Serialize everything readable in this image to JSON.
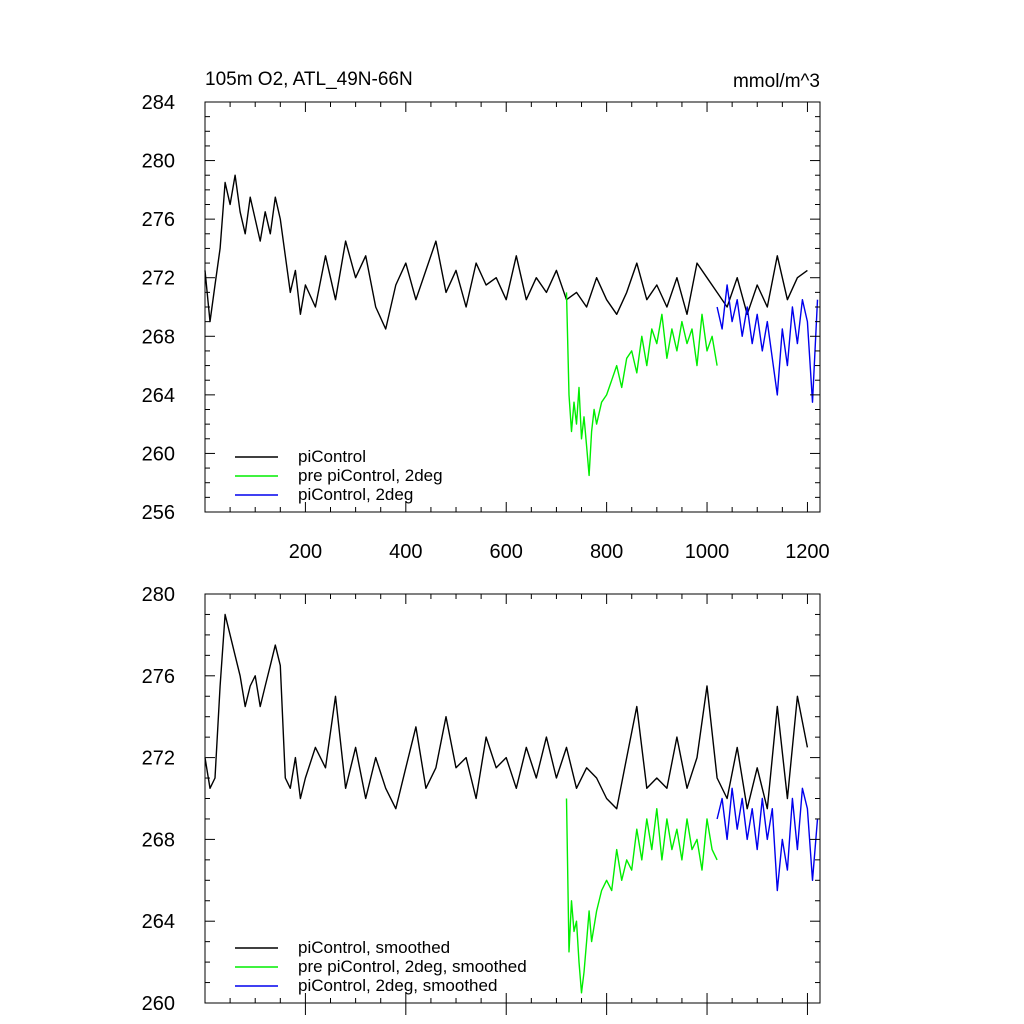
{
  "chart_data": [
    {
      "type": "line",
      "title": "105m O2, ATL_49N-66N",
      "units": "mmol/m^3",
      "xlim": [
        0,
        1225
      ],
      "ylim": [
        256,
        284
      ],
      "xticks": [
        200,
        400,
        600,
        800,
        1000,
        1200
      ],
      "xtick_labels": [
        "200",
        "400",
        "600",
        "800",
        "1000",
        "1200"
      ],
      "yticks": [
        256,
        260,
        264,
        268,
        272,
        276,
        280,
        284
      ],
      "ytick_labels": [
        "256",
        "260",
        "264",
        "268",
        "272",
        "276",
        "280",
        "284"
      ],
      "legend_position": "bottom-left",
      "series": [
        {
          "name": "piControl",
          "color": "#000000",
          "x": [
            0,
            10,
            20,
            30,
            40,
            50,
            60,
            70,
            80,
            90,
            100,
            110,
            120,
            130,
            140,
            150,
            160,
            170,
            180,
            190,
            200,
            220,
            240,
            260,
            280,
            300,
            320,
            340,
            360,
            380,
            400,
            420,
            440,
            460,
            480,
            500,
            520,
            540,
            560,
            580,
            600,
            620,
            640,
            660,
            680,
            700,
            720,
            740,
            760,
            780,
            800,
            820,
            840,
            860,
            880,
            900,
            920,
            940,
            960,
            980,
            1000,
            1020,
            1040,
            1060,
            1080,
            1100,
            1120,
            1140,
            1160,
            1180,
            1200
          ],
          "values": [
            272.5,
            269.0,
            271.5,
            274.0,
            278.5,
            277.0,
            279.0,
            276.5,
            275.0,
            277.5,
            276.0,
            274.5,
            276.5,
            275.0,
            277.5,
            276.0,
            273.5,
            271.0,
            272.5,
            269.5,
            271.5,
            270.0,
            273.5,
            270.5,
            274.5,
            272.0,
            273.5,
            270.0,
            268.5,
            271.5,
            273.0,
            270.5,
            272.5,
            274.5,
            271.0,
            272.5,
            270.0,
            273.0,
            271.5,
            272.0,
            270.5,
            273.5,
            270.5,
            272.0,
            271.0,
            272.5,
            270.5,
            271.0,
            270.0,
            272.0,
            270.5,
            269.5,
            271.0,
            273.0,
            270.5,
            271.5,
            270.0,
            272.0,
            269.5,
            273.0,
            272.0,
            271.0,
            270.0,
            272.0,
            269.5,
            271.5,
            270.0,
            273.5,
            270.5,
            272.0,
            272.5
          ]
        },
        {
          "name": "pre piControl, 2deg",
          "color": "#00ee00",
          "x": [
            720,
            725,
            730,
            735,
            740,
            745,
            750,
            755,
            760,
            765,
            770,
            775,
            780,
            790,
            800,
            810,
            820,
            830,
            840,
            850,
            860,
            870,
            880,
            890,
            900,
            910,
            920,
            930,
            940,
            950,
            960,
            970,
            980,
            990,
            1000,
            1010,
            1020
          ],
          "values": [
            271.0,
            264.0,
            261.5,
            263.5,
            262.0,
            264.5,
            261.0,
            262.5,
            260.5,
            258.5,
            261.5,
            263.0,
            262.0,
            263.5,
            264.0,
            265.0,
            266.0,
            264.5,
            266.5,
            267.0,
            265.5,
            268.0,
            266.0,
            268.5,
            267.5,
            269.5,
            266.5,
            268.5,
            267.0,
            269.0,
            267.5,
            268.5,
            266.0,
            269.5,
            267.0,
            268.0,
            266.0
          ]
        },
        {
          "name": "piControl, 2deg",
          "color": "#0000ee",
          "x": [
            1020,
            1030,
            1040,
            1050,
            1060,
            1070,
            1080,
            1090,
            1100,
            1110,
            1120,
            1130,
            1140,
            1150,
            1160,
            1170,
            1180,
            1190,
            1200,
            1210,
            1220
          ],
          "values": [
            270.0,
            268.5,
            271.5,
            269.0,
            270.5,
            268.0,
            270.0,
            267.5,
            269.5,
            267.0,
            269.0,
            266.5,
            264.0,
            268.5,
            266.0,
            270.0,
            267.5,
            270.5,
            269.0,
            263.5,
            270.5
          ]
        }
      ]
    },
    {
      "type": "line",
      "xlim": [
        0,
        1225
      ],
      "ylim": [
        260,
        280
      ],
      "xticks": [
        200,
        400,
        600,
        800,
        1000,
        1200
      ],
      "yticks": [
        260,
        264,
        268,
        272,
        276,
        280
      ],
      "ytick_labels": [
        "260",
        "264",
        "268",
        "272",
        "276",
        "280"
      ],
      "legend_position": "bottom-left",
      "series": [
        {
          "name": "piControl, smoothed",
          "color": "#000000",
          "x": [
            0,
            10,
            20,
            30,
            40,
            50,
            60,
            70,
            80,
            90,
            100,
            110,
            120,
            130,
            140,
            150,
            160,
            170,
            180,
            190,
            200,
            220,
            240,
            260,
            280,
            300,
            320,
            340,
            360,
            380,
            400,
            420,
            440,
            460,
            480,
            500,
            520,
            540,
            560,
            580,
            600,
            620,
            640,
            660,
            680,
            700,
            720,
            740,
            760,
            780,
            800,
            820,
            840,
            860,
            880,
            900,
            920,
            940,
            960,
            980,
            1000,
            1020,
            1040,
            1060,
            1080,
            1100,
            1120,
            1140,
            1160,
            1180,
            1200
          ],
          "values": [
            272.0,
            270.5,
            271.0,
            275.5,
            279.0,
            278.0,
            277.0,
            276.0,
            274.5,
            275.5,
            276.0,
            274.5,
            275.5,
            276.5,
            277.5,
            276.5,
            271.0,
            270.5,
            272.0,
            270.0,
            271.0,
            272.5,
            271.5,
            275.0,
            270.5,
            272.5,
            270.0,
            272.0,
            270.5,
            269.5,
            271.5,
            273.5,
            270.5,
            271.5,
            274.0,
            271.5,
            272.0,
            270.0,
            273.0,
            271.5,
            272.0,
            270.5,
            272.5,
            271.0,
            273.0,
            271.0,
            272.5,
            270.5,
            271.5,
            271.0,
            270.0,
            269.5,
            272.0,
            274.5,
            270.5,
            271.0,
            270.5,
            273.0,
            270.5,
            272.0,
            275.5,
            271.0,
            270.0,
            272.5,
            269.5,
            271.5,
            269.5,
            274.5,
            270.0,
            275.0,
            272.5
          ]
        },
        {
          "name": "pre piControl, 2deg, smoothed",
          "color": "#00ee00",
          "x": [
            720,
            725,
            730,
            735,
            740,
            745,
            750,
            755,
            760,
            765,
            770,
            780,
            790,
            800,
            810,
            820,
            830,
            840,
            850,
            860,
            870,
            880,
            890,
            900,
            910,
            920,
            930,
            940,
            950,
            960,
            970,
            980,
            990,
            1000,
            1010,
            1020
          ],
          "values": [
            270.0,
            262.5,
            265.0,
            263.5,
            264.0,
            262.0,
            260.5,
            261.5,
            263.0,
            264.5,
            263.0,
            264.5,
            265.5,
            266.0,
            265.5,
            267.5,
            266.0,
            267.0,
            266.5,
            268.5,
            267.0,
            269.0,
            267.5,
            269.5,
            267.0,
            269.0,
            267.5,
            268.5,
            267.0,
            269.0,
            267.5,
            268.0,
            266.5,
            269.0,
            267.5,
            267.0
          ]
        },
        {
          "name": "piControl, 2deg, smoothed",
          "color": "#0000ee",
          "x": [
            1020,
            1030,
            1040,
            1050,
            1060,
            1070,
            1080,
            1090,
            1100,
            1110,
            1120,
            1130,
            1140,
            1150,
            1160,
            1170,
            1180,
            1190,
            1200,
            1210,
            1220
          ],
          "values": [
            269.0,
            270.0,
            268.0,
            270.5,
            268.5,
            270.0,
            268.0,
            269.5,
            267.5,
            270.0,
            268.0,
            269.5,
            265.5,
            268.0,
            266.5,
            270.0,
            267.5,
            270.5,
            269.5,
            266.0,
            269.0
          ]
        }
      ]
    }
  ]
}
